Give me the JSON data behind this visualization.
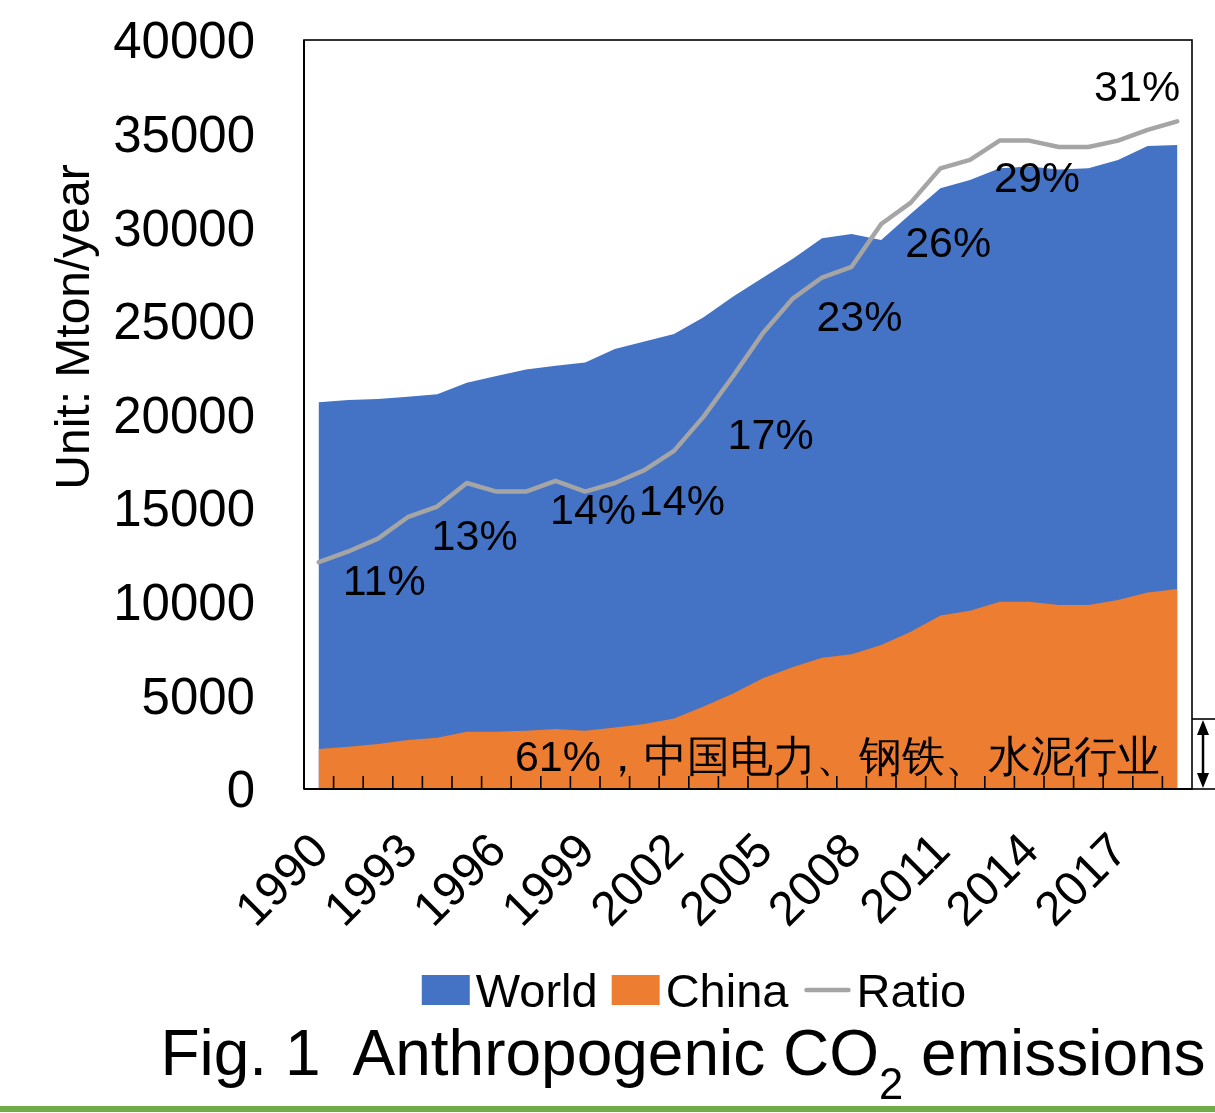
{
  "chart_data": {
    "type": "area",
    "title": "Fig. 1  Anthropogenic CO$_{2}$ emissions",
    "ylabel": "Unit: Mton/year",
    "categories": [
      "1990",
      null,
      null,
      "1993",
      null,
      null,
      "1996",
      null,
      null,
      "1999",
      null,
      null,
      "2002",
      null,
      null,
      "2005",
      null,
      null,
      "2008",
      null,
      null,
      "2011",
      null,
      null,
      "2014",
      null,
      null,
      "2017",
      null,
      null
    ],
    "series": [
      {
        "name": "World",
        "color": "#4472c4",
        "values": [
          20650,
          20770,
          20830,
          20950,
          21080,
          21700,
          22060,
          22400,
          22610,
          22780,
          23500,
          23900,
          24300,
          25200,
          26300,
          27300,
          28300,
          29410,
          29640,
          29320,
          30720,
          32080,
          32520,
          33150,
          33240,
          33090,
          33150,
          33590,
          34340,
          34390
        ]
      },
      {
        "name": "China",
        "color": "#ed7d31",
        "values": [
          2140,
          2260,
          2400,
          2620,
          2740,
          3060,
          3060,
          3110,
          3200,
          3110,
          3290,
          3470,
          3770,
          4400,
          5100,
          5910,
          6500,
          7010,
          7190,
          7690,
          8400,
          9260,
          9520,
          10000,
          10000,
          9830,
          9830,
          10090,
          10500,
          10680
        ]
      },
      {
        "name": "Ratio",
        "color": "#a5a5a5",
        "type": "line",
        "axis": "y2",
        "values": [
          10.6,
          11.1,
          11.7,
          12.7,
          13.2,
          14.3,
          13.9,
          13.9,
          14.4,
          13.9,
          14.3,
          14.9,
          15.8,
          17.4,
          19.3,
          21.3,
          22.9,
          23.9,
          24.4,
          26.4,
          27.4,
          29.0,
          29.4,
          30.3,
          30.3,
          30.0,
          30.0,
          30.3,
          30.8,
          31.2
        ],
        "value_labels": [
          "11%",
          null,
          null,
          "13%",
          null,
          null,
          null,
          "14%",
          null,
          null,
          "14%",
          null,
          null,
          "17%",
          null,
          null,
          "23%",
          null,
          null,
          "26%",
          null,
          null,
          "29%",
          null,
          null,
          null,
          null,
          null,
          null,
          "31%"
        ]
      }
    ],
    "ylim": [
      0,
      40000
    ],
    "yticks": [
      0,
      5000,
      10000,
      15000,
      20000,
      25000,
      30000,
      35000,
      40000
    ],
    "y2lim": [
      0,
      35
    ],
    "annotations": [
      "61%，中国电力、钢铁、水泥行业"
    ],
    "legend": "bottom"
  }
}
